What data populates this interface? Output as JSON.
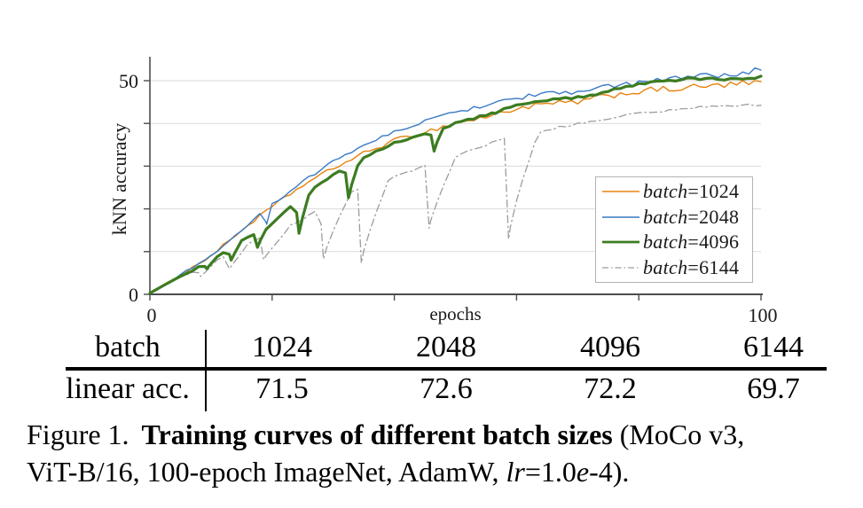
{
  "chart_data": {
    "type": "line",
    "title": "",
    "xlabel": "epochs",
    "ylabel": "kNN accuracy",
    "xlim": [
      0,
      100
    ],
    "ylim": [
      0,
      55
    ],
    "grid": "horizontal-only",
    "gridlines_y": [
      10,
      20,
      30,
      40,
      50
    ],
    "x_tick_values": [
      0,
      20,
      40,
      60,
      80,
      100
    ],
    "x_tick_labels": [
      {
        "value": 0,
        "label": "0"
      },
      {
        "value": 100,
        "label": "100"
      }
    ],
    "y_tick_values": [
      0,
      10,
      20,
      30,
      40,
      50
    ],
    "y_tick_labels": [
      {
        "value": 0,
        "label": "0"
      },
      {
        "value": 50,
        "label": "50"
      }
    ],
    "legend_position": "lower right",
    "draw_order": [
      0,
      1,
      3,
      2
    ],
    "x_anchors": [
      0,
      5,
      10,
      15,
      20,
      25,
      30,
      35,
      40,
      45,
      50,
      55,
      60,
      65,
      70,
      75,
      80,
      85,
      90,
      95,
      100
    ],
    "series": [
      {
        "name": "batch=1024",
        "color": "#e8820e",
        "width": 1.4,
        "dash": null,
        "noise": 0.7,
        "values": [
          0.3,
          4.5,
          9,
          15,
          20.5,
          25.5,
          29.5,
          33,
          36,
          38,
          40,
          41.5,
          43.5,
          44.5,
          45,
          46.5,
          47.5,
          48,
          48.5,
          49,
          49.5
        ],
        "dips": []
      },
      {
        "name": "batch=2048",
        "color": "#3779c4",
        "width": 1.4,
        "dash": null,
        "noise": 0.6,
        "values": [
          0.3,
          4.5,
          9,
          15,
          21,
          26.5,
          31,
          35,
          38,
          40.5,
          42.5,
          44.5,
          46,
          47,
          47.5,
          48.5,
          49.5,
          50.5,
          51,
          51.5,
          52.5
        ],
        "dips": [
          [
            19.1,
            16.4,
            0.6
          ]
        ]
      },
      {
        "name": "batch=4096",
        "color": "#3c7c21",
        "width": 3.2,
        "dash": null,
        "noise": 0.3,
        "values": [
          0.3,
          4.2,
          7.8,
          12.5,
          16.5,
          23,
          28,
          32,
          35.5,
          37.5,
          40,
          42,
          44.5,
          45.5,
          46,
          47.5,
          49,
          50,
          50.5,
          50.5,
          51
        ],
        "dips": [
          [
            9.3,
            6,
            1.2
          ],
          [
            13.3,
            8,
            1.5
          ],
          [
            17.6,
            11,
            1.6
          ],
          [
            24.4,
            14.3,
            1.8
          ],
          [
            32.5,
            22.6,
            1.8
          ],
          [
            46.5,
            33.5,
            1.5
          ],
          [
            56.5,
            42.3,
            1.0
          ]
        ]
      },
      {
        "name": "batch=6144",
        "color": "#9c9c9c",
        "width": 1.3,
        "dash": "8 4 1.5 4",
        "noise": 0.25,
        "values": [
          0.3,
          4,
          7.2,
          11,
          14.5,
          17.5,
          22.5,
          25,
          27.5,
          30,
          32.5,
          35,
          37.5,
          38.5,
          40,
          41,
          42.5,
          43,
          44,
          44,
          44.3
        ],
        "dips": [
          [
            8.3,
            4.2,
            2.5
          ],
          [
            13.0,
            6,
            3.0
          ],
          [
            18.6,
            8.1,
            4.5
          ],
          [
            28.4,
            8.3,
            4.5
          ],
          [
            34.6,
            7.3,
            4.5
          ],
          [
            45.7,
            15.5,
            4.5
          ],
          [
            58.7,
            12.9,
            5.0
          ]
        ]
      }
    ]
  },
  "table": {
    "header_label": "batch",
    "header_values": [
      "1024",
      "2048",
      "4096",
      "6144"
    ],
    "row_label": "linear acc.",
    "row_values": [
      "71.5",
      "72.6",
      "72.2",
      "69.7"
    ]
  },
  "caption": {
    "label": "Figure 1.",
    "title_bold": "Training curves of different batch sizes",
    "after_title": " (MoCo v3,",
    "line2_pre": "ViT-B/16, 100-epoch ImageNet, AdamW, ",
    "lr": "lr",
    "lr_mid": "=1.0",
    "e": "e",
    "line2_end": "-4)."
  }
}
